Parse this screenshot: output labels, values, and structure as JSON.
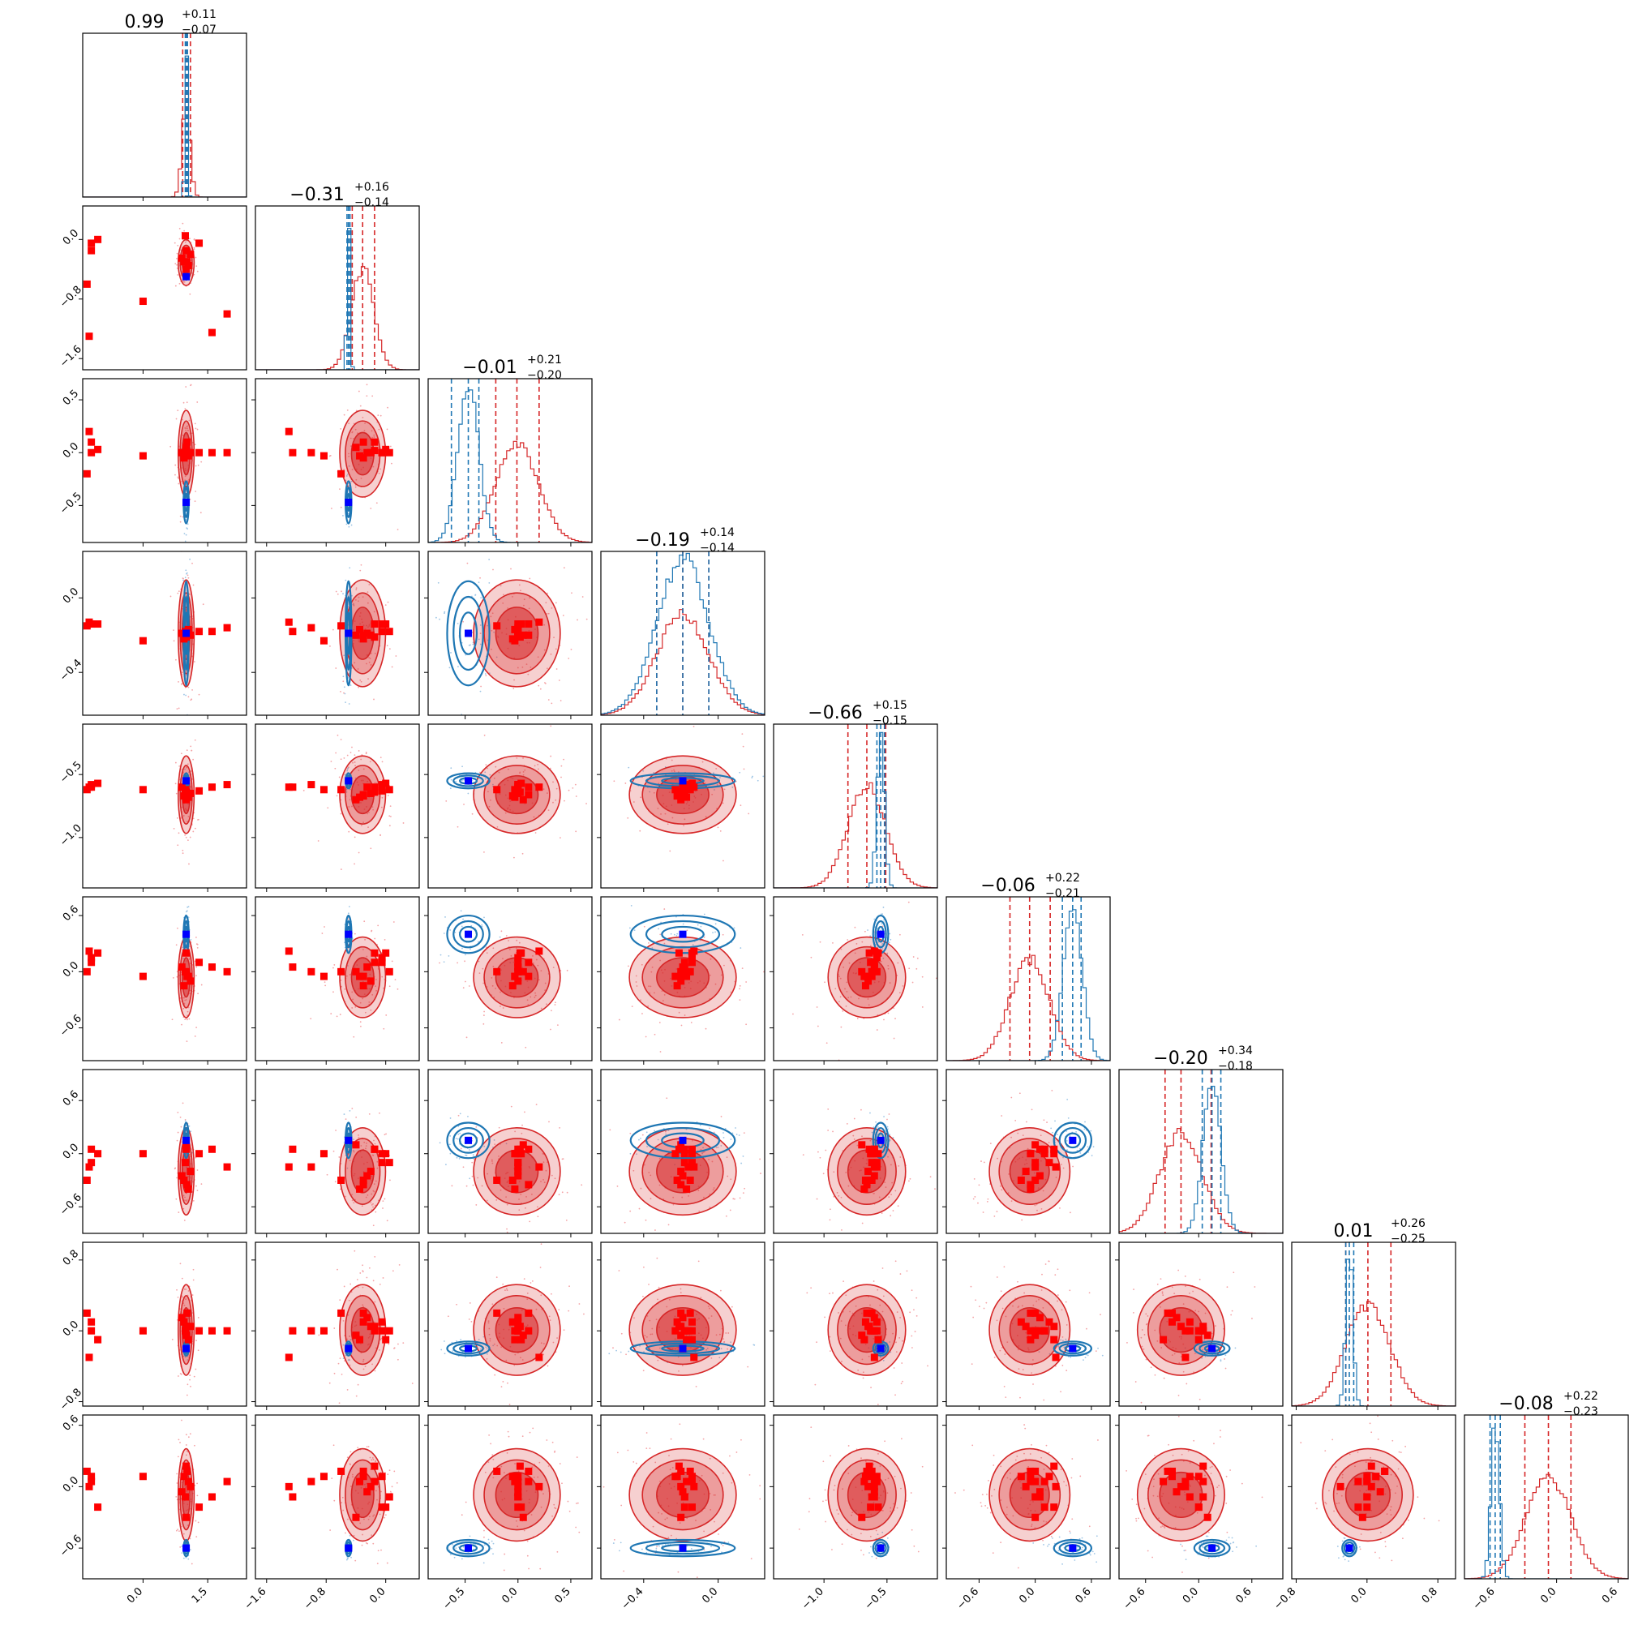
{
  "chart_data": {
    "type": "scatter",
    "subtype": "corner-plot",
    "n_params": 9,
    "grid": false,
    "colors": {
      "posterior_a": "#d62728",
      "posterior_b": "#1f77b4",
      "red_points": "#ff0000",
      "truth_point": "#0000ff"
    },
    "titles": [
      {
        "v": "0.99",
        "up": "+0.11",
        "lo": "−0.07"
      },
      {
        "v": "−0.31",
        "up": "+0.16",
        "lo": "−0.14"
      },
      {
        "v": "−0.01",
        "up": "+0.21",
        "lo": "−0.20"
      },
      {
        "v": "−0.19",
        "up": "+0.14",
        "lo": "−0.14"
      },
      {
        "v": "−0.66",
        "up": "+0.15",
        "lo": "−0.15"
      },
      {
        "v": "−0.06",
        "up": "+0.22",
        "lo": "−0.21"
      },
      {
        "v": "−0.20",
        "up": "+0.34",
        "lo": "−0.18"
      },
      {
        "v": "0.01",
        "up": "+0.26",
        "lo": "−0.25"
      },
      {
        "v": "−0.08",
        "up": "+0.22",
        "lo": "−0.23"
      }
    ],
    "ranges": [
      [
        -1.4,
        2.4
      ],
      [
        -1.75,
        0.45
      ],
      [
        -0.85,
        0.7
      ],
      [
        -0.63,
        0.25
      ],
      [
        -1.4,
        -0.1
      ],
      [
        -0.95,
        0.8
      ],
      [
        -0.9,
        0.95
      ],
      [
        -0.85,
        1.0
      ],
      [
        -0.9,
        0.7
      ]
    ],
    "ticks": [
      {
        "vals": [
          0.0,
          1.5
        ],
        "labels": [
          "0.0",
          "1.5"
        ]
      },
      {
        "vals": [
          -1.6,
          -0.8,
          0.0
        ],
        "labels": [
          "−1.6",
          "−0.8",
          "0.0"
        ]
      },
      {
        "vals": [
          -0.5,
          0.0,
          0.5
        ],
        "labels": [
          "−0.5",
          "0.0",
          "0.5"
        ]
      },
      {
        "vals": [
          -0.4,
          0.0
        ],
        "labels": [
          "−0.4",
          "0.0"
        ]
      },
      {
        "vals": [
          -1.0,
          -0.5
        ],
        "labels": [
          "−1.0",
          "−0.5"
        ]
      },
      {
        "vals": [
          -0.6,
          0.0,
          0.6
        ],
        "labels": [
          "−0.6",
          "0.0",
          "0.6"
        ]
      },
      {
        "vals": [
          -0.6,
          0.0,
          0.6
        ],
        "labels": [
          "−0.6",
          "0.0",
          "0.6"
        ]
      },
      {
        "vals": [
          -0.8,
          0.0,
          0.8
        ],
        "labels": [
          "−0.8",
          "0.0",
          "0.8"
        ]
      },
      {
        "vals": [
          -0.6,
          0.0,
          0.6
        ],
        "labels": [
          "−0.6",
          "0.0",
          "0.6"
        ]
      }
    ],
    "posterior_a": {
      "mean": [
        1.0,
        -0.31,
        -0.01,
        -0.19,
        -0.66,
        -0.06,
        -0.2,
        0.01,
        -0.08
      ],
      "sd": [
        0.09,
        0.15,
        0.2,
        0.14,
        0.15,
        0.21,
        0.24,
        0.25,
        0.22
      ],
      "quantiles": [
        [
          0.92,
          1.1
        ],
        [
          -0.45,
          -0.15
        ],
        [
          -0.21,
          0.2
        ],
        [
          -0.33,
          -0.05
        ],
        [
          -0.81,
          -0.51
        ],
        [
          -0.27,
          0.16
        ],
        [
          -0.38,
          0.14
        ],
        [
          -0.24,
          0.27
        ],
        [
          -0.31,
          0.14
        ]
      ]
    },
    "posterior_b": {
      "mean": [
        1.0,
        -0.5,
        -0.47,
        -0.19,
        -0.55,
        0.4,
        0.15,
        -0.2,
        -0.6
      ],
      "sd": [
        0.03,
        0.02,
        0.1,
        0.14,
        0.03,
        0.1,
        0.1,
        0.04,
        0.04
      ],
      "quantiles": [
        [
          0.98,
          1.03
        ],
        [
          -0.52,
          -0.48
        ],
        [
          -0.63,
          -0.37
        ],
        [
          -0.33,
          -0.05
        ],
        [
          -0.58,
          -0.52
        ],
        [
          0.29,
          0.49
        ],
        [
          0.04,
          0.25
        ],
        [
          -0.24,
          -0.15
        ],
        [
          -0.65,
          -0.55
        ]
      ]
    },
    "truth": [
      1.0,
      -0.5,
      -0.47,
      -0.19,
      -0.55,
      0.4,
      0.15,
      -0.2,
      -0.6
    ],
    "red_points": [
      [
        -1.2,
        -0.15,
        0.1,
        -0.14,
        -0.6,
        0.1,
        0.05,
        0.0,
        0.05
      ],
      [
        -1.2,
        -0.05,
        0.0,
        -0.14,
        -0.58,
        0.15,
        -0.1,
        0.1,
        0.1
      ],
      [
        -1.05,
        0.0,
        0.03,
        -0.14,
        -0.57,
        0.2,
        0.0,
        -0.1,
        -0.2
      ],
      [
        -1.3,
        -0.6,
        -0.2,
        -0.15,
        -0.62,
        0.0,
        -0.3,
        0.2,
        0.15
      ],
      [
        -1.25,
        -1.3,
        0.2,
        -0.13,
        -0.6,
        0.22,
        -0.15,
        -0.3,
        0.0
      ],
      [
        0.0,
        -0.83,
        -0.03,
        -0.23,
        -0.62,
        -0.05,
        0.0,
        0.0,
        0.1
      ],
      [
        1.95,
        -1.0,
        0.0,
        -0.16,
        -0.58,
        0.0,
        -0.15,
        0.0,
        0.05
      ],
      [
        1.6,
        -1.25,
        0.0,
        -0.18,
        -0.6,
        0.05,
        0.05,
        0.0,
        -0.1
      ],
      [
        1.3,
        -0.05,
        0.0,
        -0.18,
        -0.63,
        0.1,
        0.0,
        0.0,
        -0.2
      ],
      [
        1.1,
        -0.2,
        0.0,
        -0.2,
        -0.65,
        -0.1,
        -0.2,
        0.05,
        0.0
      ],
      [
        0.95,
        -0.3,
        -0.05,
        -0.22,
        -0.67,
        -0.15,
        -0.3,
        0.1,
        0.1
      ],
      [
        1.0,
        -0.4,
        0.05,
        -0.2,
        -0.7,
        0.0,
        0.1,
        -0.05,
        -0.3
      ],
      [
        0.9,
        -0.25,
        0.0,
        -0.19,
        -0.6,
        0.05,
        -0.25,
        0.15,
        -0.05
      ],
      [
        1.05,
        -0.35,
        -0.03,
        -0.17,
        -0.68,
        -0.05,
        -0.4,
        -0.1,
        0.05
      ],
      [
        1.0,
        -0.15,
        0.02,
        -0.21,
        -0.64,
        0.2,
        0.05,
        0.05,
        0.2
      ],
      [
        0.98,
        0.05,
        0.0,
        -0.18,
        -0.62,
        0.0,
        -0.1,
        0.0,
        -0.1
      ],
      [
        1.02,
        -0.3,
        0.1,
        -0.2,
        -0.66,
        -0.05,
        -0.35,
        0.2,
        0.15
      ]
    ]
  }
}
